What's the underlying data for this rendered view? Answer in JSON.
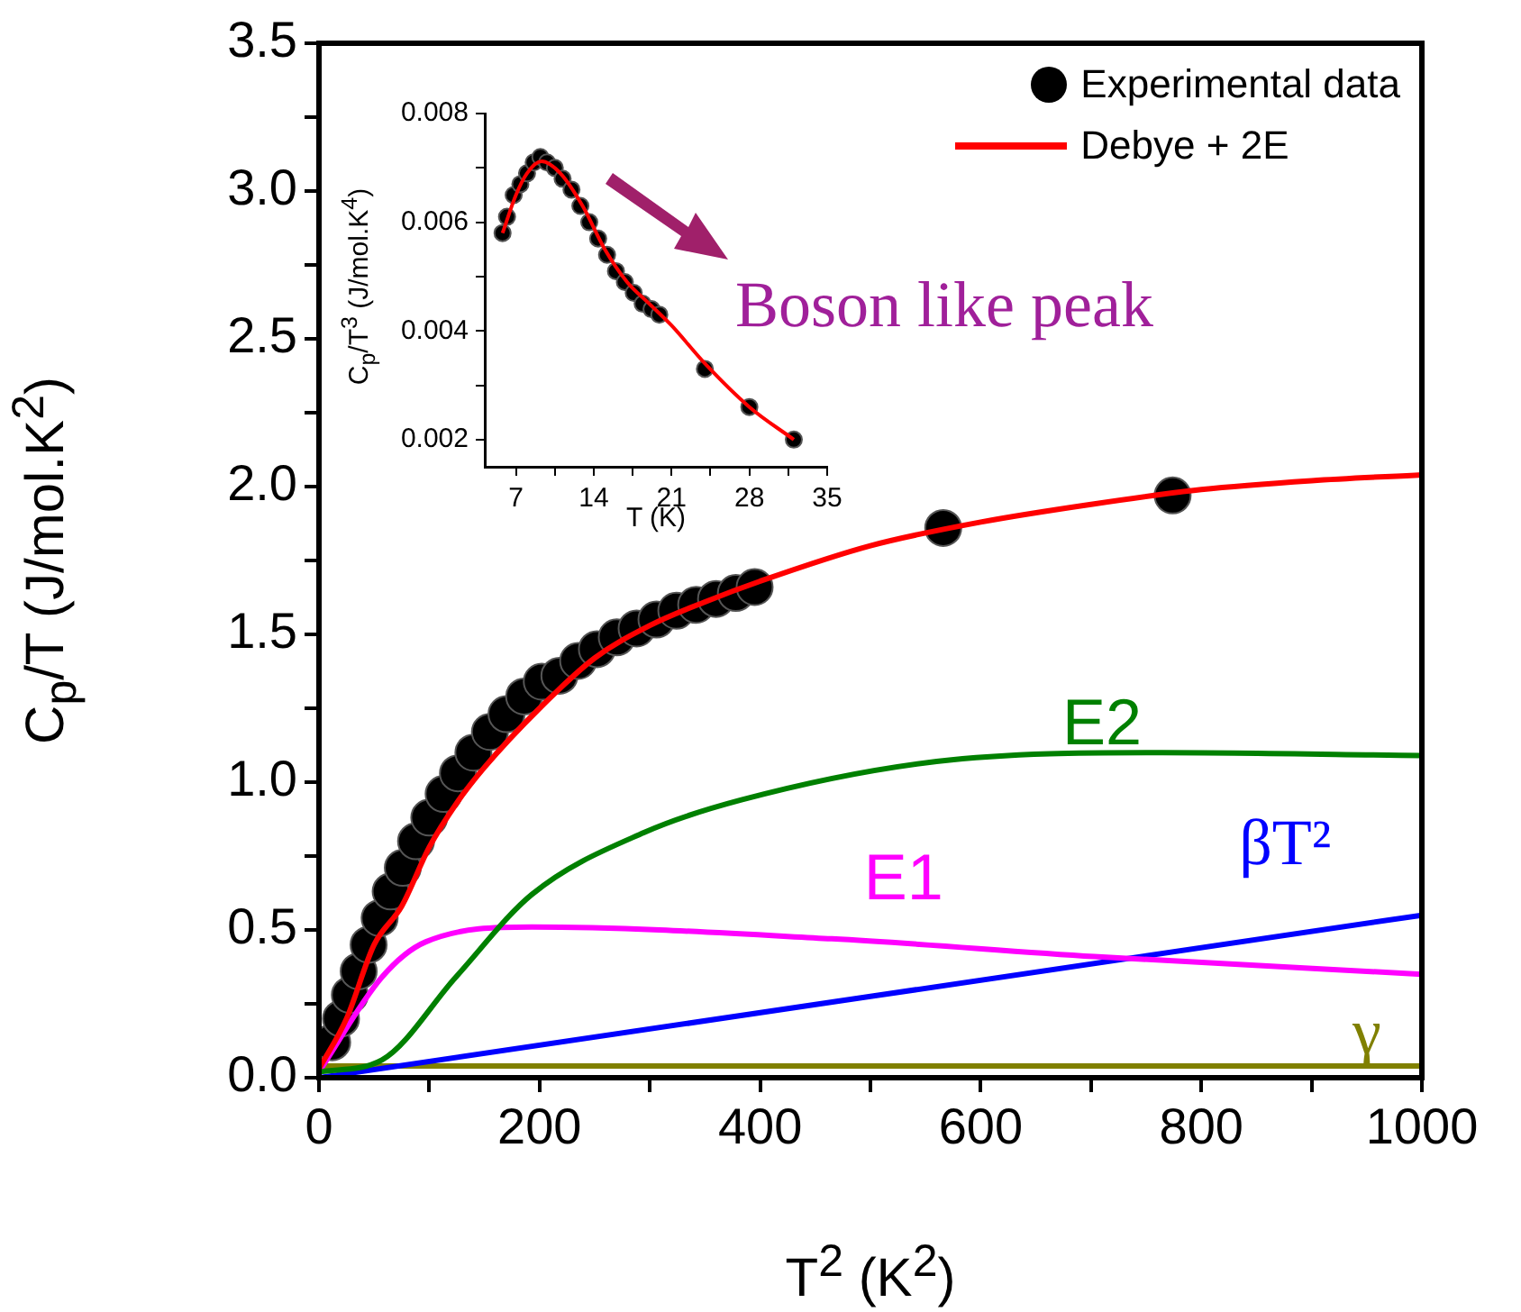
{
  "chart_data": [
    {
      "type": "line",
      "xlabel": "T$^{2}$ (K$^{2}$)",
      "ylabel": "C$_{p}$/T (J/mol.K$^{2}$)",
      "annotations": [
        "Boson like peak"
      ],
      "legend": "top right",
      "grid": false,
      "xlim": [
        0,
        1000
      ],
      "ylim": [
        0,
        3.5
      ],
      "xticks": [
        0,
        {
          "value": 100,
          "label": null
        },
        200,
        {
          "value": 300,
          "label": null
        },
        400,
        {
          "value": 500,
          "label": null
        },
        600,
        {
          "value": 700,
          "label": null
        },
        800,
        {
          "value": 900,
          "label": null
        },
        1000
      ],
      "yticks": [
        {
          "value": 0,
          "label": "0.0"
        },
        {
          "value": 0.25,
          "label": null
        },
        {
          "value": 0.5,
          "label": "0.5"
        },
        {
          "value": 0.75,
          "label": null
        },
        {
          "value": 1,
          "label": "1.0"
        },
        {
          "value": 1.25,
          "label": null
        },
        {
          "value": 1.5,
          "label": "1.5"
        },
        {
          "value": 1.75,
          "label": null
        },
        {
          "value": 2,
          "label": "2.0"
        },
        {
          "value": 2.25,
          "label": null
        },
        {
          "value": 2.5,
          "label": "2.5"
        },
        {
          "value": 2.75,
          "label": null
        },
        {
          "value": 3,
          "label": "3.0"
        },
        {
          "value": 3.25,
          "label": null
        },
        {
          "value": 3.5,
          "label": "3.5"
        }
      ],
      "series": [
        {
          "name": "Experimental data",
          "type": "scatter",
          "marker": "circle",
          "color": "#000000",
          "x": [
            12,
            20,
            28,
            36,
            45,
            55,
            65,
            76,
            88,
            100,
            113,
            126,
            140,
            155,
            170,
            186,
            202,
            218,
            235,
            252,
            270,
            288,
            306,
            324,
            342,
            360,
            378,
            395,
            566,
            774
          ],
          "values": [
            0.12,
            0.2,
            0.28,
            0.36,
            0.45,
            0.54,
            0.63,
            0.71,
            0.8,
            0.88,
            0.96,
            1.03,
            1.1,
            1.17,
            1.23,
            1.29,
            1.34,
            1.36,
            1.41,
            1.45,
            1.49,
            1.52,
            1.55,
            1.58,
            1.6,
            1.62,
            1.64,
            1.66,
            1.86,
            1.97
          ]
        },
        {
          "name": "Debye + 2E",
          "color": "#ff0000",
          "x": [
            0,
            25,
            50,
            75,
            100,
            125,
            150,
            200,
            250,
            300,
            350,
            400,
            500,
            600,
            700,
            800,
            900,
            1000
          ],
          "values": [
            0.03,
            0.2,
            0.45,
            0.58,
            0.78,
            0.93,
            1.05,
            1.25,
            1.42,
            1.53,
            1.61,
            1.68,
            1.8,
            1.88,
            1.94,
            1.99,
            2.02,
            2.04
          ]
        },
        {
          "name": "E2",
          "color": "#008000",
          "x": [
            0,
            57,
            124,
            193,
            295,
            383,
            560,
            765,
            1000
          ],
          "values": [
            0.02,
            0.06,
            0.34,
            0.62,
            0.83,
            0.94,
            1.07,
            1.1,
            1.09
          ]
        },
        {
          "name": "E1",
          "color": "#ff00ff",
          "x": [
            0,
            57,
            97,
            193,
            465,
            703,
            1000
          ],
          "values": [
            0.02,
            0.34,
            0.46,
            0.51,
            0.47,
            0.41,
            0.35
          ]
        },
        {
          "name": "βT²",
          "color": "#0000ff",
          "x": [
            0,
            1000
          ],
          "values": [
            0,
            0.55
          ]
        },
        {
          "name": "γ",
          "color": "#808000",
          "x": [
            0,
            1000
          ],
          "values": [
            0.04,
            0.04
          ]
        }
      ]
    },
    {
      "type": "line",
      "xlabel": "T (K)",
      "ylabel": "C$_{p}$/T$^{3}$ (J/mol.K$^{4}$)",
      "grid": false,
      "xlim": [
        4.2,
        35
      ],
      "ylim": [
        0.0015,
        0.008
      ],
      "xticks": [
        7,
        {
          "value": 10.5,
          "label": null
        },
        14,
        {
          "value": 17.5,
          "label": null
        },
        21,
        {
          "value": 24.5,
          "label": null
        },
        28,
        {
          "value": 31.5,
          "label": null
        },
        35
      ],
      "yticks": [
        0.002,
        {
          "value": 0.003,
          "label": null
        },
        0.004,
        {
          "value": 0.005,
          "label": null
        },
        0.006,
        {
          "value": 0.007,
          "label": null
        },
        0.008
      ],
      "series": [
        {
          "type": "scatter",
          "marker": "circle",
          "color": "#000000",
          "x": [
            5.8,
            6.2,
            6.8,
            7.4,
            8,
            8.6,
            9.2,
            9.8,
            10.5,
            11.2,
            12,
            12.8,
            13.6,
            14.4,
            15.2,
            16,
            16.8,
            17.6,
            18.4,
            19.2,
            19.9,
            24,
            28,
            32
          ],
          "values": [
            0.0058,
            0.0061,
            0.0065,
            0.0067,
            0.0069,
            0.0071,
            0.0072,
            0.0071,
            0.007,
            0.0068,
            0.0066,
            0.0063,
            0.006,
            0.0057,
            0.0054,
            0.0051,
            0.0049,
            0.0047,
            0.0045,
            0.0044,
            0.0043,
            0.0033,
            0.0026,
            0.002
          ]
        },
        {
          "color": "#ff0000",
          "x": [
            5.8,
            7,
            8,
            9.3,
            11,
            13,
            15,
            17,
            19,
            21,
            24,
            28,
            32
          ],
          "values": [
            0.0058,
            0.0065,
            0.0069,
            0.00712,
            0.0069,
            0.0063,
            0.0055,
            0.0049,
            0.0045,
            0.0041,
            0.0034,
            0.0026,
            0.002
          ]
        }
      ]
    }
  ]
}
